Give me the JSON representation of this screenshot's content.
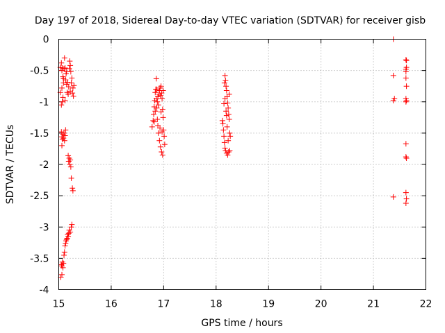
{
  "chart_data": {
    "type": "scatter",
    "title": "Day 197 of 2018, Sidereal Day-to-day VTEC variation (SDTVAR) for receiver gisb",
    "xlabel": "GPS time / hours",
    "ylabel": "SDTVAR / TECUs",
    "xlim": [
      15,
      22
    ],
    "ylim": [
      -4,
      0
    ],
    "xticks": [
      "15",
      "16",
      "17",
      "18",
      "19",
      "20",
      "21",
      "22"
    ],
    "yticks": [
      "0",
      "-0.5",
      "-1",
      "-1.5",
      "-2",
      "-2.5",
      "-3",
      "-3.5",
      "-4"
    ],
    "grid": true,
    "marker": "+",
    "color": "#ff0000",
    "series": [
      {
        "name": "SDTVAR",
        "points": [
          [
            15.03,
            -0.45
          ],
          [
            15.05,
            -0.38
          ],
          [
            15.06,
            -0.5
          ],
          [
            15.07,
            -0.46
          ],
          [
            15.08,
            -0.6
          ],
          [
            15.09,
            -0.7
          ],
          [
            15.1,
            -0.47
          ],
          [
            15.11,
            -0.3
          ],
          [
            15.12,
            -0.46
          ],
          [
            15.13,
            -0.65
          ],
          [
            15.14,
            -0.55
          ],
          [
            15.15,
            -0.72
          ],
          [
            15.16,
            -0.85
          ],
          [
            15.17,
            -0.69
          ],
          [
            15.18,
            -0.88
          ],
          [
            15.19,
            -0.76
          ],
          [
            15.2,
            -0.47
          ],
          [
            15.21,
            -0.35
          ],
          [
            15.22,
            -0.42
          ],
          [
            15.23,
            -0.52
          ],
          [
            15.24,
            -0.7
          ],
          [
            15.25,
            -0.62
          ],
          [
            15.26,
            -0.86
          ],
          [
            15.27,
            -0.78
          ],
          [
            15.28,
            -0.91
          ],
          [
            15.29,
            -0.74
          ],
          [
            15.06,
            -0.78
          ],
          [
            15.08,
            -0.93
          ],
          [
            15.05,
            -1.05
          ],
          [
            15.07,
            -1.0
          ],
          [
            15.12,
            -0.98
          ],
          [
            15.03,
            -0.85
          ],
          [
            15.09,
            -0.63
          ],
          [
            15.15,
            -0.52
          ],
          [
            15.22,
            -0.83
          ],
          [
            15.05,
            -1.48
          ],
          [
            15.06,
            -1.56
          ],
          [
            15.07,
            -1.6
          ],
          [
            15.08,
            -1.52
          ],
          [
            15.09,
            -1.58
          ],
          [
            15.1,
            -1.5
          ],
          [
            15.11,
            -1.62
          ],
          [
            15.12,
            -1.54
          ],
          [
            15.13,
            -1.45
          ],
          [
            15.06,
            -1.7
          ],
          [
            15.18,
            -1.86
          ],
          [
            15.19,
            -1.95
          ],
          [
            15.2,
            -1.9
          ],
          [
            15.21,
            -2.0
          ],
          [
            15.22,
            -1.93
          ],
          [
            15.23,
            -2.04
          ],
          [
            15.24,
            -2.22
          ],
          [
            15.26,
            -2.38
          ],
          [
            15.27,
            -2.42
          ],
          [
            15.04,
            -3.8
          ],
          [
            15.05,
            -3.6
          ],
          [
            15.06,
            -3.62
          ],
          [
            15.07,
            -3.56
          ],
          [
            15.08,
            -3.65
          ],
          [
            15.09,
            -3.58
          ],
          [
            15.1,
            -3.45
          ],
          [
            15.11,
            -3.4
          ],
          [
            15.12,
            -3.3
          ],
          [
            15.13,
            -3.26
          ],
          [
            15.14,
            -3.22
          ],
          [
            15.15,
            -3.2
          ],
          [
            15.16,
            -3.18
          ],
          [
            15.17,
            -3.12
          ],
          [
            15.18,
            -3.15
          ],
          [
            15.19,
            -3.1
          ],
          [
            15.2,
            -3.05
          ],
          [
            15.22,
            -3.08
          ],
          [
            15.24,
            -3.0
          ],
          [
            15.25,
            -2.96
          ],
          [
            15.06,
            -3.76
          ],
          [
            16.78,
            -1.4
          ],
          [
            16.8,
            -1.3
          ],
          [
            16.81,
            -1.2
          ],
          [
            16.82,
            -1.08
          ],
          [
            16.83,
            -0.98
          ],
          [
            16.84,
            -0.85
          ],
          [
            16.85,
            -0.8
          ],
          [
            16.86,
            -0.95
          ],
          [
            16.87,
            -1.1
          ],
          [
            16.88,
            -1.28
          ],
          [
            16.89,
            -1.38
          ],
          [
            16.9,
            -1.05
          ],
          [
            16.91,
            -0.88
          ],
          [
            16.92,
            -0.82
          ],
          [
            16.93,
            -0.78
          ],
          [
            16.94,
            -0.9
          ],
          [
            16.95,
            -0.75
          ],
          [
            16.96,
            -0.86
          ],
          [
            16.97,
            -0.95
          ],
          [
            16.98,
            -1.12
          ],
          [
            16.99,
            -1.25
          ],
          [
            17.0,
            -1.45
          ],
          [
            17.01,
            -1.55
          ],
          [
            17.02,
            -1.68
          ],
          [
            16.86,
            -0.63
          ],
          [
            16.9,
            -1.5
          ],
          [
            16.92,
            -1.62
          ],
          [
            16.94,
            -1.72
          ],
          [
            16.96,
            -1.8
          ],
          [
            16.98,
            -1.85
          ],
          [
            16.88,
            -1.0
          ],
          [
            16.84,
            -1.15
          ],
          [
            16.82,
            -1.32
          ],
          [
            16.95,
            -1.16
          ],
          [
            16.97,
            -1.48
          ],
          [
            16.99,
            -0.82
          ],
          [
            16.89,
            -0.92
          ],
          [
            16.93,
            -1.42
          ],
          [
            16.87,
            -0.8
          ],
          [
            18.12,
            -1.3
          ],
          [
            18.13,
            -1.35
          ],
          [
            18.14,
            -1.45
          ],
          [
            18.15,
            -1.55
          ],
          [
            18.16,
            -1.65
          ],
          [
            18.17,
            -1.74
          ],
          [
            18.15,
            -1.03
          ],
          [
            18.16,
            -0.7
          ],
          [
            18.17,
            -0.58
          ],
          [
            18.18,
            -0.66
          ],
          [
            18.19,
            -0.75
          ],
          [
            18.2,
            -0.82
          ],
          [
            18.21,
            -0.92
          ],
          [
            18.22,
            -1.02
          ],
          [
            18.23,
            -1.1
          ],
          [
            18.24,
            -1.2
          ],
          [
            18.25,
            -1.28
          ],
          [
            18.26,
            -1.5
          ],
          [
            18.27,
            -1.55
          ],
          [
            18.18,
            -1.78
          ],
          [
            18.2,
            -1.82
          ],
          [
            18.22,
            -1.85
          ],
          [
            18.24,
            -1.8
          ],
          [
            18.26,
            -1.78
          ],
          [
            18.19,
            -1.15
          ],
          [
            18.21,
            -1.4
          ],
          [
            18.23,
            -1.62
          ],
          [
            18.25,
            -0.88
          ],
          [
            18.17,
            -0.95
          ],
          [
            18.2,
            -1.22
          ],
          [
            21.38,
            0.0
          ],
          [
            21.38,
            -0.58
          ],
          [
            21.4,
            -0.95
          ],
          [
            21.38,
            -0.98
          ],
          [
            21.38,
            -2.52
          ],
          [
            21.62,
            -0.33
          ],
          [
            21.63,
            -0.34
          ],
          [
            21.62,
            -0.48
          ],
          [
            21.63,
            -0.45
          ],
          [
            21.62,
            -0.52
          ],
          [
            21.62,
            -0.62
          ],
          [
            21.63,
            -0.75
          ],
          [
            21.62,
            -0.95
          ],
          [
            21.63,
            -0.98
          ],
          [
            21.62,
            -1.0
          ],
          [
            21.62,
            -1.67
          ],
          [
            21.62,
            -1.88
          ],
          [
            21.63,
            -1.9
          ],
          [
            21.62,
            -2.45
          ],
          [
            21.63,
            -2.55
          ],
          [
            21.62,
            -2.62
          ]
        ]
      }
    ]
  }
}
